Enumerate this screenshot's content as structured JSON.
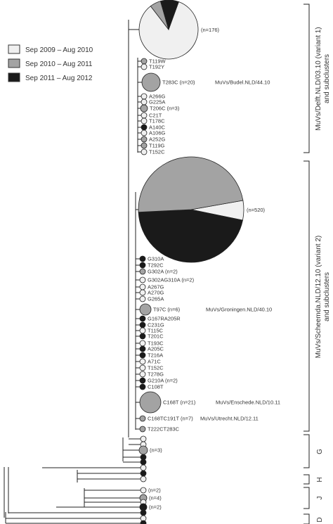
{
  "legend": [
    {
      "label": "Sep 2009 – Aug 2010",
      "color": "#f0f0f0"
    },
    {
      "label": "Sep 2010 – Aug 2011",
      "color": "#a3a3a3"
    },
    {
      "label": "Sep 2011 – Aug 2012",
      "color": "#1a1a1a"
    }
  ],
  "colors": {
    "white": "#f0f0f0",
    "grey": "#a3a3a3",
    "black": "#1a1a1a"
  },
  "clusters": [
    {
      "label_line1": "MuVs/Delft.NLD/03.10 (variant 1)",
      "label_line2": "and subclusters"
    },
    {
      "label_line1": "MuVs/Scheemda.NLD/12.10 (variant 2)",
      "label_line2": "and subclusters"
    },
    {
      "label": "G"
    },
    {
      "label": "H"
    },
    {
      "label": "J"
    },
    {
      "label": "D"
    }
  ],
  "pies": [
    {
      "count": "(n=176)",
      "shares": {
        "white": 0.84,
        "grey": 0.06,
        "black": 0.1
      }
    },
    {
      "count": "(n=520)",
      "shares": {
        "white": 0.06,
        "grey": 0.48,
        "black": 0.46
      }
    }
  ],
  "nodes": [
    {
      "label": "T119W",
      "color": "grey"
    },
    {
      "label": "T192Y",
      "color": "white"
    },
    {
      "label": "T283C (n=20)",
      "color": "grey",
      "strain": "MuVs/Budel.NLD/44.10"
    },
    {
      "label": "A266G",
      "color": "white"
    },
    {
      "label": "G225A",
      "color": "white"
    },
    {
      "label": "T206C (n=3)",
      "color": "grey"
    },
    {
      "label": "C21T",
      "color": "white"
    },
    {
      "label": "T178C",
      "color": "white"
    },
    {
      "label": "A140C",
      "color": "black"
    },
    {
      "label": "A106G",
      "color": "white"
    },
    {
      "label": "A252G",
      "color": "grey"
    },
    {
      "label": "T119G",
      "color": "grey"
    },
    {
      "label": "T152C",
      "color": "white"
    },
    {
      "label": "G310A",
      "color": "black"
    },
    {
      "label": "T292C",
      "color": "black"
    },
    {
      "label": "G302A (n=2)",
      "color": "grey"
    },
    {
      "label": "G302AG310A (n=2)",
      "color": "white"
    },
    {
      "label": "A267G",
      "color": "white"
    },
    {
      "label": "A270G",
      "color": "white"
    },
    {
      "label": "G265A",
      "color": "white"
    },
    {
      "label": "T97C (n=6)",
      "color": "grey",
      "strain": "MuVs/Groningen.NLD/40.10"
    },
    {
      "label": "G167RA205R",
      "color": "black"
    },
    {
      "label": "C231G",
      "color": "black"
    },
    {
      "label": "T115C",
      "color": "white"
    },
    {
      "label": "T201C",
      "color": "black"
    },
    {
      "label": "T193C",
      "color": "white"
    },
    {
      "label": "A205C",
      "color": "black"
    },
    {
      "label": "T216A",
      "color": "black"
    },
    {
      "label": "A71C",
      "color": "white"
    },
    {
      "label": "T152C",
      "color": "white"
    },
    {
      "label": "T278G",
      "color": "white"
    },
    {
      "label": "G210A (n=2)",
      "color": "black"
    },
    {
      "label": "C108T",
      "color": "black"
    },
    {
      "label": "C168T (n=21)",
      "color": "grey",
      "strain": "MuVs/Enschede.NLD/10.11"
    },
    {
      "label": "C168TC191T (n=7)",
      "color": "grey",
      "strain": "MuVs/Utrecht.NLD/12.11"
    },
    {
      "label": "T222CT283C",
      "color": "grey"
    },
    {
      "label": "",
      "color": "white"
    },
    {
      "label": "",
      "color": "white"
    },
    {
      "label": "(n=3)",
      "color": "grey"
    },
    {
      "label": "",
      "color": "black"
    },
    {
      "label": "",
      "color": "black"
    },
    {
      "label": "",
      "color": "white"
    },
    {
      "label": "",
      "color": "black"
    },
    {
      "label": "",
      "color": "white"
    },
    {
      "label": "(n=2)",
      "color": "white"
    },
    {
      "label": "(n=4)",
      "color": "grey"
    },
    {
      "label": "",
      "color": "white"
    },
    {
      "label": "(n=2)",
      "color": "black"
    },
    {
      "label": "",
      "color": "black"
    },
    {
      "label": "",
      "color": "white"
    },
    {
      "label": "",
      "color": "black"
    }
  ]
}
